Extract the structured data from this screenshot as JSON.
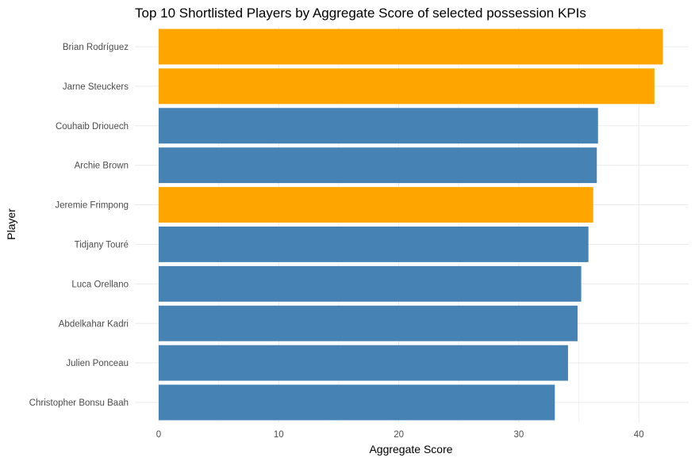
{
  "chart_data": {
    "type": "bar",
    "orientation": "horizontal",
    "title": "Top 10 Shortlisted Players by Aggregate Score of selected possession KPIs",
    "xlabel": "Aggregate Score",
    "ylabel": "Player",
    "xlim": [
      0,
      43.5
    ],
    "xticks": [
      0,
      10,
      20,
      30,
      40
    ],
    "grid": true,
    "legend": "none",
    "colors": {
      "highlight": "#FFA500",
      "default": "#4682B4"
    },
    "categories": [
      "Brian Rodríguez",
      "Jarne Steuckers",
      "Couhaib Driouech",
      "Archie Brown",
      "Jeremie Frimpong",
      "Tidjany Touré",
      "Luca Orellano",
      "Abdelkahar Kadri",
      "Julien Ponceau",
      "Christopher Bonsu Baah"
    ],
    "values": [
      42.0,
      41.3,
      36.6,
      36.5,
      36.2,
      35.8,
      35.2,
      34.9,
      34.1,
      33.0
    ],
    "highlighted": [
      true,
      true,
      false,
      false,
      true,
      false,
      false,
      false,
      false,
      false
    ]
  }
}
